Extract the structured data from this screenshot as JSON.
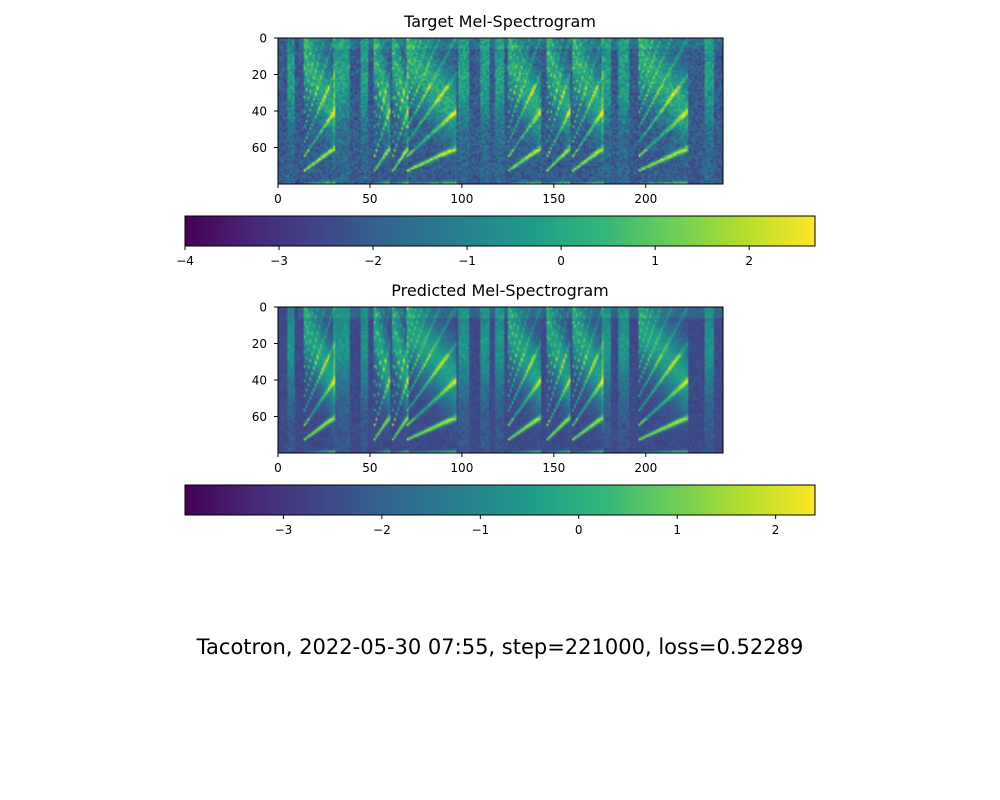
{
  "figure_title": "Tacotron, 2022-05-30 07:55, step=221000, loss=0.52289",
  "colormap": "viridis",
  "colors": {
    "viridis_stops": [
      "#440154",
      "#482878",
      "#3e4989",
      "#31688e",
      "#26828e",
      "#1f9e89",
      "#35b779",
      "#6ece58",
      "#b5de2b",
      "#fde725"
    ]
  },
  "chart_data": [
    {
      "type": "heatmap",
      "title": "Target Mel-Spectrogram",
      "x_ticks": [
        "0",
        "50",
        "100",
        "150",
        "200"
      ],
      "y_ticks": [
        "0",
        "20",
        "40",
        "60"
      ],
      "xlim": [
        0,
        242
      ],
      "ylim": [
        80,
        0
      ],
      "n_frames": 242,
      "n_mels": 80,
      "colorbar": {
        "min": -4.0,
        "max": 2.7,
        "ticks": [
          "−4",
          "−3",
          "−2",
          "−1",
          "0",
          "1",
          "2"
        ],
        "tick_values": [
          -4,
          -3,
          -2,
          -1,
          0,
          1,
          2
        ]
      }
    },
    {
      "type": "heatmap",
      "title": "Predicted Mel-Spectrogram",
      "x_ticks": [
        "0",
        "50",
        "100",
        "150",
        "200"
      ],
      "y_ticks": [
        "0",
        "20",
        "40",
        "60"
      ],
      "xlim": [
        0,
        242
      ],
      "ylim": [
        80,
        0
      ],
      "n_frames": 242,
      "n_mels": 80,
      "colorbar": {
        "min": -4.0,
        "max": 2.4,
        "ticks": [
          "−3",
          "−2",
          "−1",
          "0",
          "1",
          "2"
        ],
        "tick_values": [
          -3,
          -2,
          -1,
          0,
          1,
          2
        ]
      }
    }
  ]
}
